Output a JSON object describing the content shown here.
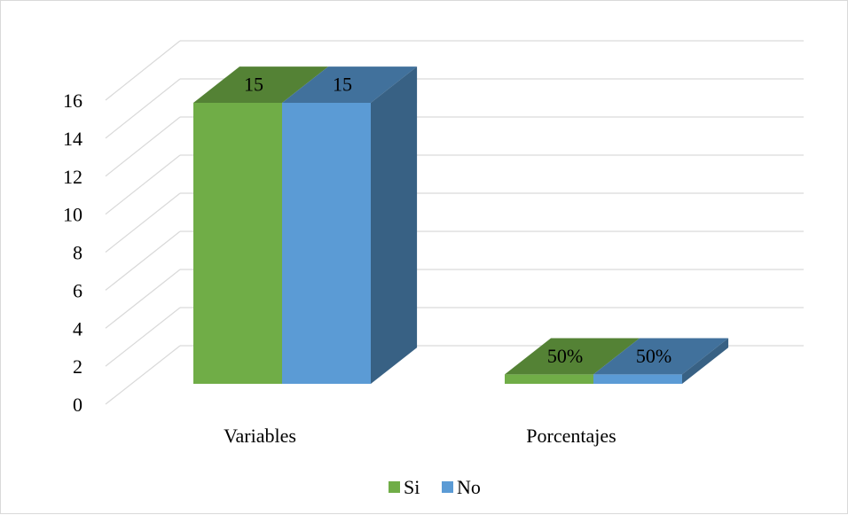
{
  "chart_data": {
    "type": "bar",
    "style": "3d-clustered",
    "categories": [
      "Variables",
      "Porcentajes"
    ],
    "series": [
      {
        "name": "Si",
        "values": [
          15,
          0.5
        ],
        "labels": [
          "15",
          "50%"
        ],
        "color": "#70ad47",
        "top_color": "#548235"
      },
      {
        "name": "No",
        "values": [
          15,
          0.5
        ],
        "labels": [
          "15",
          "50%"
        ],
        "color": "#5b9bd5",
        "top_color": "#41719c",
        "side_color": "#386184"
      }
    ],
    "ylim": [
      0,
      16
    ],
    "yticks": [
      "0",
      "2",
      "4",
      "6",
      "8",
      "10",
      "12",
      "14",
      "16"
    ],
    "grid": true,
    "legend": "bottom",
    "title": "",
    "xlabel": "",
    "ylabel": ""
  }
}
